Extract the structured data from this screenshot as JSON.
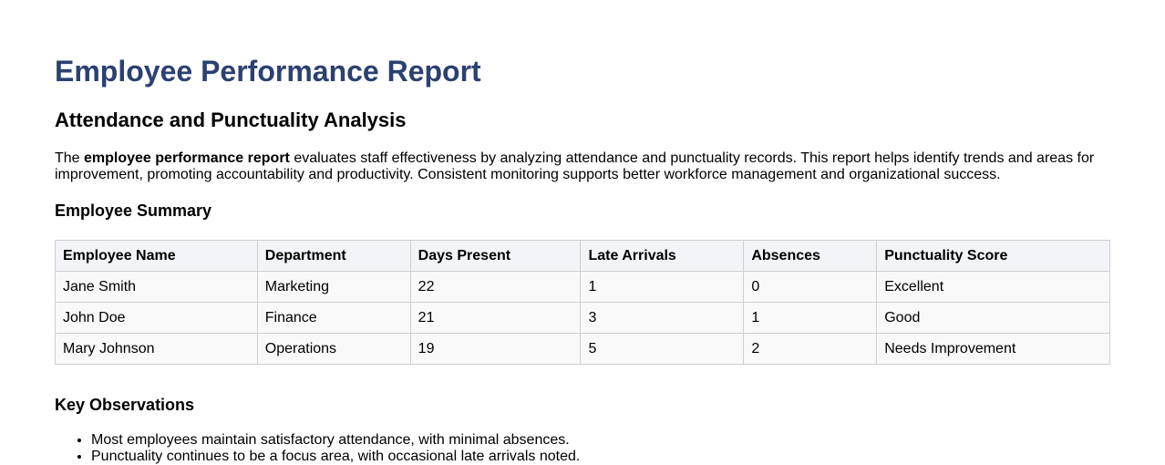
{
  "header": {
    "title": "Employee Performance Report",
    "subtitle": "Attendance and Punctuality Analysis"
  },
  "intro": {
    "before": "The ",
    "bold": "employee performance report",
    "after": " evaluates staff effectiveness by analyzing attendance and punctuality records. This report helps identify trends and areas for improvement, promoting accountability and productivity. Consistent monitoring supports better workforce management and organizational success."
  },
  "summary": {
    "heading": "Employee Summary",
    "table": {
      "columns": [
        "Employee Name",
        "Department",
        "Days Present",
        "Late Arrivals",
        "Absences",
        "Punctuality Score"
      ],
      "rows": [
        [
          "Jane Smith",
          "Marketing",
          22,
          1,
          0,
          "Excellent"
        ],
        [
          "John Doe",
          "Finance",
          21,
          3,
          1,
          "Good"
        ],
        [
          "Mary Johnson",
          "Operations",
          19,
          5,
          2,
          "Needs Improvement"
        ]
      ]
    }
  },
  "observations": {
    "heading": "Key Observations",
    "items": [
      "Most employees maintain satisfactory attendance, with minimal absences.",
      "Punctuality continues to be a focus area, with occasional late arrivals noted."
    ]
  }
}
